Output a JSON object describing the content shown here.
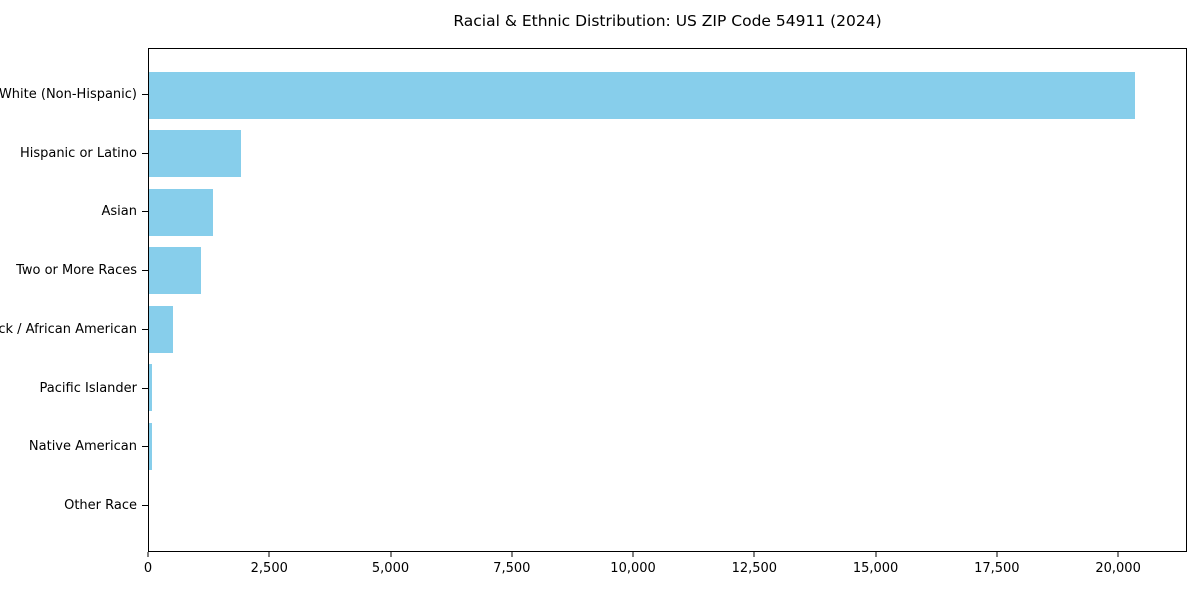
{
  "figure": {
    "background": "#ffffff"
  },
  "chart_data": {
    "type": "bar",
    "orientation": "horizontal",
    "title": "Racial & Ethnic Distribution: US ZIP Code 54911 (2024)",
    "categories": [
      "White (Non-Hispanic)",
      "Hispanic or Latino",
      "Asian",
      "Two or More Races",
      "Black / African American",
      "Pacific Islander",
      "Native American",
      "Other Race"
    ],
    "values": [
      20370,
      1895,
      1320,
      1075,
      495,
      70,
      60,
      0
    ],
    "xlabel": "",
    "ylabel": "",
    "xlim": [
      0,
      21420
    ],
    "xticks": [
      0,
      2500,
      5000,
      7500,
      10000,
      12500,
      15000,
      17500,
      20000
    ],
    "xtick_labels": [
      "0",
      "2,500",
      "5,000",
      "7,500",
      "10,000",
      "12,500",
      "15,000",
      "17,500",
      "20,000"
    ],
    "bar_color": "#87CEEB",
    "axis_color": "#000000",
    "text_color": "#000000",
    "grid": false,
    "legend": "none",
    "sort_order": "descending"
  }
}
